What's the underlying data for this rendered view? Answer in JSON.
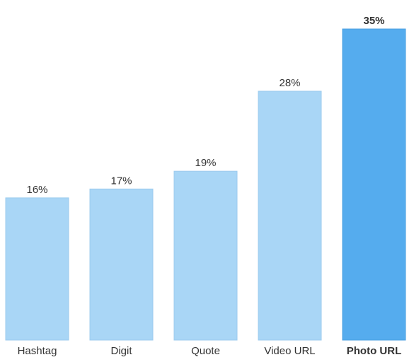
{
  "chart_data": {
    "type": "bar",
    "categories": [
      "Hashtag",
      "Digit",
      "Quote",
      "Video URL",
      "Photo URL"
    ],
    "values": [
      16,
      17,
      19,
      28,
      35
    ],
    "value_labels": [
      "16%",
      "17%",
      "19%",
      "28%",
      "35%"
    ],
    "colors": [
      "#a9d6f6",
      "#a9d6f6",
      "#a9d6f6",
      "#a9d6f6",
      "#55acee"
    ],
    "highlight_color": "#55acee"
  }
}
